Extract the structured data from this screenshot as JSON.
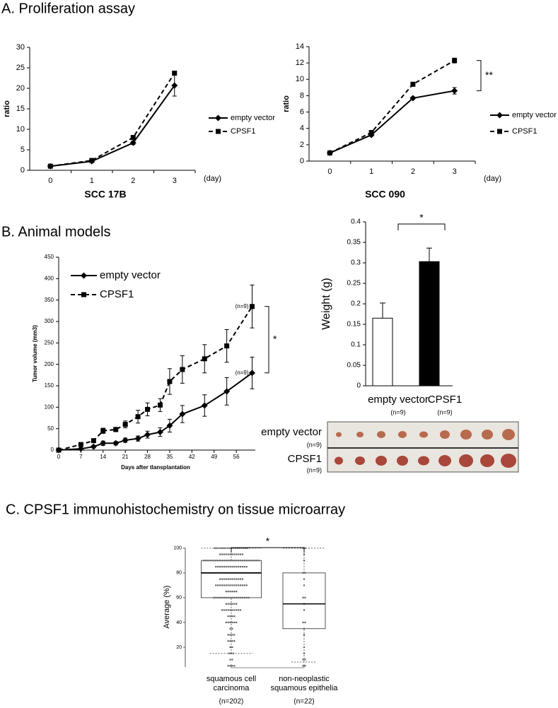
{
  "headings": [
    "A. Proliferation assay",
    "B. Animal models",
    "C. CPSF1 immunohistochemistry on tissue microarray"
  ],
  "chart_data": [
    {
      "type": "line",
      "title": "SCC 17B",
      "y_label": "ratio",
      "x_label": "(day)",
      "categories": [
        "0",
        "1",
        "2",
        "3"
      ],
      "ylim": [
        0,
        30
      ],
      "yticks": [
        0,
        5,
        10,
        15,
        20,
        25,
        30
      ],
      "series": [
        {
          "name": "empty vector",
          "color": "#000000",
          "line_style": "solid",
          "marker": "diamond",
          "values": [
            1,
            2.2,
            6.7,
            20.7
          ],
          "errors": [
            0.1,
            0.2,
            0.4,
            2.6
          ]
        },
        {
          "name": "CPSF1",
          "color": "#000000",
          "line_style": "dashed",
          "marker": "square",
          "values": [
            1,
            2.4,
            8,
            23.7
          ],
          "errors": [
            0.1,
            0.2,
            0.5,
            0.5
          ]
        }
      ]
    },
    {
      "type": "line",
      "title": "SCC 090",
      "y_label": "ratio",
      "x_label": "(day)",
      "categories": [
        "0",
        "1",
        "2",
        "3"
      ],
      "ylim": [
        0,
        14
      ],
      "yticks": [
        0,
        2,
        4,
        6,
        8,
        10,
        12,
        14
      ],
      "significance": "**",
      "series": [
        {
          "name": "empty vector",
          "color": "#000000",
          "line_style": "solid",
          "marker": "diamond",
          "values": [
            1,
            3.2,
            7.7,
            8.6
          ],
          "errors": [
            0.05,
            0.15,
            0.15,
            0.4
          ]
        },
        {
          "name": "CPSF1",
          "color": "#000000",
          "line_style": "dashed",
          "marker": "square",
          "values": [
            1,
            3.5,
            9.4,
            12.3
          ],
          "errors": [
            0.05,
            0.15,
            0.15,
            0.3
          ]
        }
      ]
    },
    {
      "type": "line",
      "y_label": "Tumor volume (mm3)",
      "x_label": "Days after tlansplantation",
      "x": [
        0,
        7,
        11,
        14,
        18,
        21,
        25,
        28,
        32,
        35,
        39,
        46,
        53,
        61
      ],
      "xlim": [
        0,
        62
      ],
      "xticks": [
        0,
        7,
        14,
        21,
        28,
        35,
        42,
        49,
        56
      ],
      "ylim": [
        0,
        450
      ],
      "yticks": [
        0,
        50,
        100,
        150,
        200,
        250,
        300,
        350,
        400,
        450
      ],
      "significance": "*",
      "series": [
        {
          "name": "empty vector",
          "color": "#000000",
          "line_style": "solid",
          "marker": "diamond",
          "n_label": "(n=9)",
          "values": [
            0,
            3,
            8,
            16,
            16,
            23,
            27,
            36,
            42,
            57,
            84,
            104,
            137,
            180
          ],
          "errors": [
            0,
            2,
            3,
            5,
            4,
            5,
            6,
            8,
            10,
            15,
            20,
            25,
            32,
            37
          ]
        },
        {
          "name": "CPSF1",
          "color": "#000000",
          "line_style": "dashed",
          "marker": "square",
          "n_label": "(n=9)",
          "values": [
            0,
            13,
            22,
            45,
            48,
            60,
            78,
            95,
            105,
            160,
            188,
            213,
            243,
            335
          ],
          "errors": [
            0,
            3,
            4,
            6,
            5,
            8,
            15,
            15,
            15,
            30,
            32,
            33,
            38,
            50
          ]
        }
      ]
    },
    {
      "type": "bar",
      "y_label": "Weight (g)",
      "categories": [
        "empty vector",
        "CPSF1"
      ],
      "n_labels": [
        "(n=9)",
        "(n=9)"
      ],
      "values": [
        0.165,
        0.303
      ],
      "errors": [
        0.037,
        0.033
      ],
      "colors": [
        "#ffffff",
        "#000000"
      ],
      "ylim": [
        0,
        0.4
      ],
      "yticks": [
        0,
        0.05,
        0.1,
        0.15,
        0.2,
        0.25,
        0.3,
        0.35,
        0.4
      ],
      "significance": "*"
    },
    {
      "type": "box",
      "y_label": "Average (%)",
      "categories": [
        "squamous cell carcinoma",
        "non-neoplastic squamous epithelia"
      ],
      "n_labels": [
        "(n=202)",
        "(n=22)"
      ],
      "ylim": [
        4,
        101
      ],
      "yticks": [
        20,
        40,
        60,
        80,
        100
      ],
      "significance": "*",
      "boxes": [
        {
          "min": 15,
          "q1": 60,
          "median": 80,
          "q3": 90,
          "max": 100
        },
        {
          "min": 8,
          "q1": 35,
          "median": 55,
          "q3": 80,
          "max": 100
        }
      ],
      "dot_levels": [
        5,
        10,
        15,
        20,
        25,
        30,
        35,
        40,
        45,
        50,
        55,
        60,
        65,
        70,
        75,
        80,
        85,
        90,
        95,
        100
      ],
      "dot_counts": [
        [
          4,
          2,
          3,
          2,
          4,
          4,
          2,
          6,
          4,
          10,
          6,
          18,
          6,
          16,
          12,
          30,
          16,
          28,
          12,
          17
        ],
        [
          2,
          2,
          1,
          1,
          0,
          1,
          1,
          2,
          0,
          1,
          1,
          2,
          0,
          1,
          1,
          2,
          0,
          1,
          1,
          2
        ]
      ]
    }
  ],
  "photo": {
    "rows": [
      {
        "label": "empty vector",
        "n": "(n=9)"
      },
      {
        "label": "CPSF1",
        "n": "(n=9)"
      }
    ]
  }
}
